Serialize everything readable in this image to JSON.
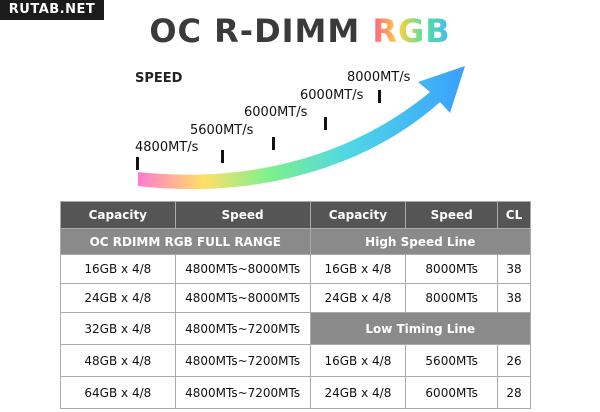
{
  "watermark": "RUTAB.NET",
  "title": {
    "main": "OC R-DIMM",
    "accent": "RGB"
  },
  "speed_label": "SPEED",
  "speed_steps": [
    "4800MT/s",
    "5600MT/s",
    "6000MT/s",
    "6000MT/s",
    "8000MT/s"
  ],
  "table": {
    "headers": [
      "Capacity",
      "Speed",
      "Capacity",
      "Speed",
      "CL"
    ],
    "left_band": "OC RDIMM RGB FULL RANGE",
    "right_band_1": "High Speed Line",
    "right_band_2": "Low Timing Line",
    "rows": [
      [
        "16GB x 4/8",
        "4800MTs~8000MTs",
        "16GB x 4/8",
        "8000MTs",
        "38"
      ],
      [
        "24GB x 4/8",
        "4800MTs~8000MTs",
        "24GB x 4/8",
        "8000MTs",
        "38"
      ],
      [
        "32GB x 4/8",
        "4800MTs~7200MTs"
      ],
      [
        "48GB x 4/8",
        "4800MTs~7200MTs",
        "16GB x 4/8",
        "5600MTs",
        "26"
      ],
      [
        "64GB x 4/8",
        "4800MTs~7200MTs",
        "24GB x 4/8",
        "6000MTs",
        "28"
      ]
    ]
  },
  "colors": {
    "header_bg": "#555555",
    "band_bg": "#8a8a8a"
  }
}
